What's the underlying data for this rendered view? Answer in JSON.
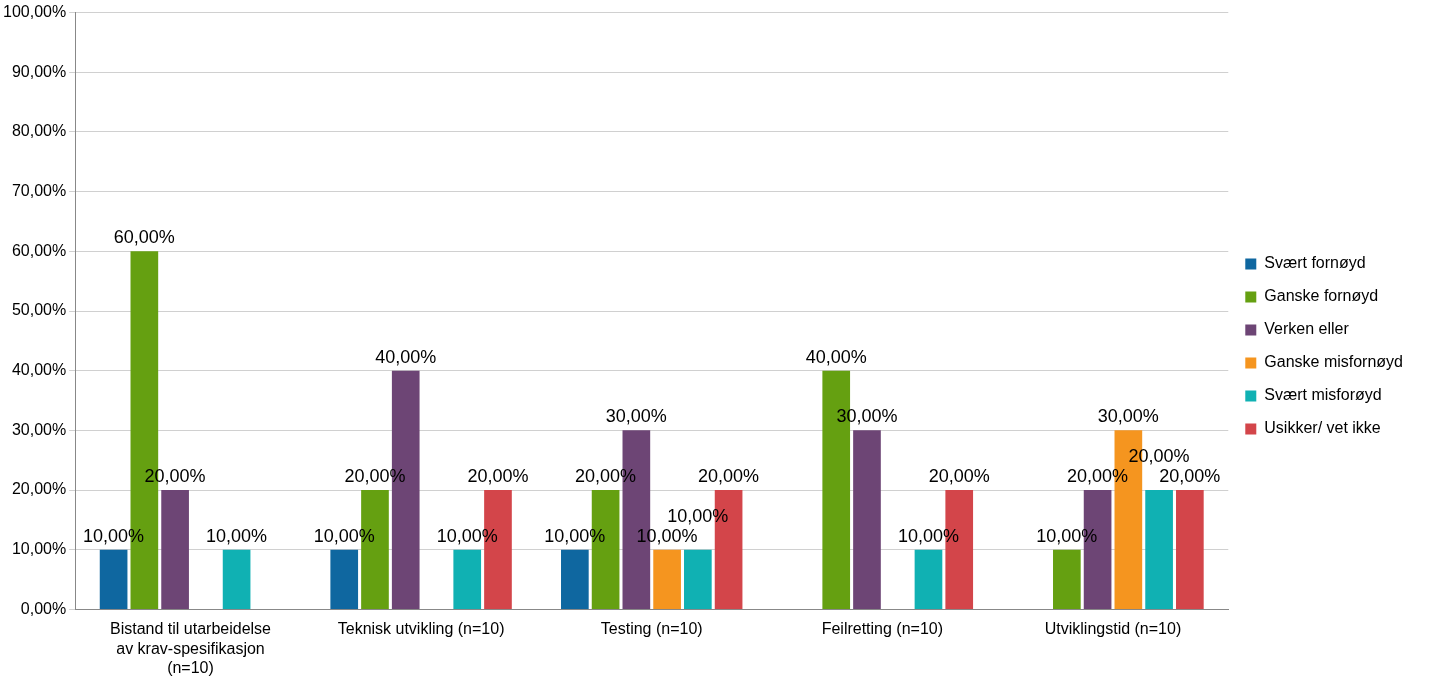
{
  "chart_data": {
    "type": "bar",
    "categories": [
      "Bistand til utarbeidelse av krav-spesifikasjon (n=10)",
      "Teknisk utvikling (n=10)",
      "Testing (n=10)",
      "Feilretting (n=10)",
      "Utviklingstid (n=10)"
    ],
    "series": [
      {
        "name": "Svært fornøyd",
        "color": "#0f67a0",
        "values": [
          10,
          10,
          10,
          0,
          0
        ],
        "value_labels": [
          "10,00%",
          "10,00%",
          "10,00%",
          null,
          null
        ]
      },
      {
        "name": "Ganske fornøyd",
        "color": "#65a011",
        "values": [
          60,
          20,
          20,
          40,
          10
        ],
        "value_labels": [
          "60,00%",
          "20,00%",
          "20,00%",
          "40,00%",
          "10,00%"
        ]
      },
      {
        "name": "Verken eller",
        "color": "#6d4575",
        "values": [
          20,
          40,
          30,
          30,
          20
        ],
        "value_labels": [
          "20,00%",
          "40,00%",
          "30,00%",
          "30,00%",
          "20,00%"
        ]
      },
      {
        "name": "Ganske misfornøyd",
        "color": "#f5951f",
        "values": [
          0,
          0,
          10,
          0,
          30
        ],
        "value_labels": [
          null,
          null,
          "10,00%",
          null,
          "30,00%"
        ]
      },
      {
        "name": "Svært misforøyd",
        "color": "#10b1b3",
        "values": [
          10,
          10,
          10,
          10,
          20
        ],
        "value_labels": [
          "10,00%",
          "10,00%",
          "10,00%",
          "10,00%",
          "20,00%"
        ]
      },
      {
        "name": "Usikker/ vet ikke",
        "color": "#d3454a",
        "values": [
          0,
          20,
          20,
          20,
          20
        ],
        "value_labels": [
          null,
          "20,00%",
          "20,00%",
          "20,00%",
          "20,00%"
        ]
      }
    ],
    "ylim": [
      0,
      100
    ],
    "yticks": [
      {
        "value": 0,
        "label": "0,00%"
      },
      {
        "value": 10,
        "label": "10,00%"
      },
      {
        "value": 20,
        "label": "20,00%"
      },
      {
        "value": 30,
        "label": "30,00%"
      },
      {
        "value": 40,
        "label": "40,00%"
      },
      {
        "value": 50,
        "label": "50,00%"
      },
      {
        "value": 60,
        "label": "60,00%"
      },
      {
        "value": 70,
        "label": "70,00%"
      },
      {
        "value": 80,
        "label": "80,00%"
      },
      {
        "value": 90,
        "label": "90,00%"
      },
      {
        "value": 100,
        "label": "100,00%"
      }
    ],
    "grid": "y",
    "legend": "right"
  }
}
